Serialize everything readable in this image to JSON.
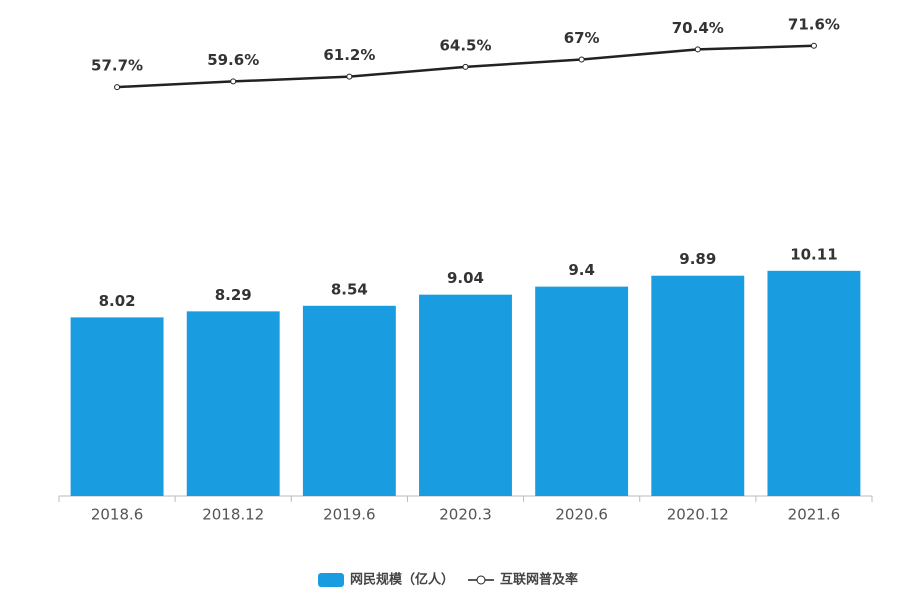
{
  "chart_data": {
    "type": "bar",
    "categories": [
      "2018.6",
      "2018.12",
      "2019.6",
      "2020.3",
      "2020.6",
      "2020.12",
      "2021.6"
    ],
    "series": [
      {
        "name": "网民规模（亿人）",
        "type": "bar",
        "color": "#1a9de0",
        "values": [
          8.02,
          8.29,
          8.54,
          9.04,
          9.4,
          9.89,
          10.11
        ]
      },
      {
        "name": "互联网普及率",
        "type": "line",
        "axis": "y2",
        "color": "#222222",
        "values": [
          57.7,
          59.6,
          61.2,
          64.5,
          67,
          70.4,
          71.6
        ],
        "value_labels": [
          "57.7%",
          "59.6%",
          "61.2%",
          "64.5%",
          "67%",
          "70.4%",
          "71.6%"
        ]
      }
    ],
    "ylim": [
      0,
      22
    ],
    "y2lim": [
      -80,
      85
    ],
    "grid": false
  }
}
